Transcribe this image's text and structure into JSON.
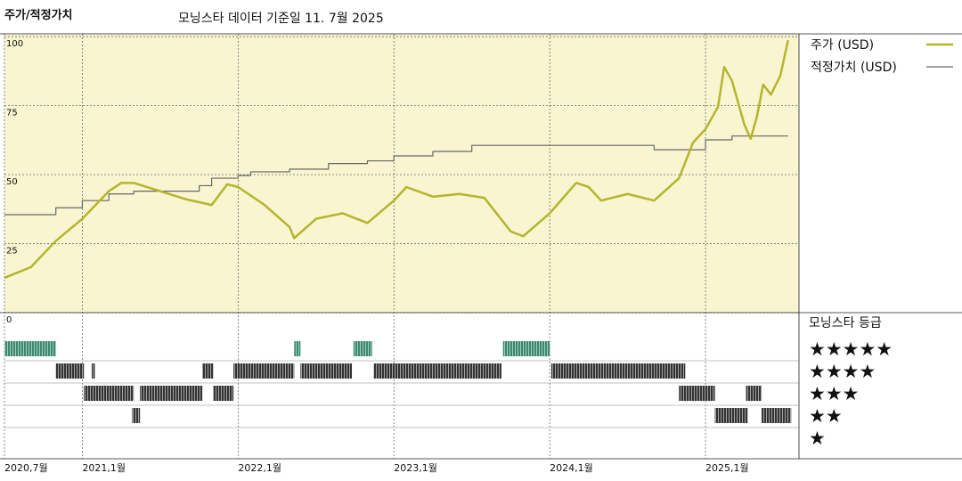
{
  "chart_data": [
    {
      "type": "line",
      "title": "주가/적정가치",
      "subtitle": "모닝스타 데이터 기준일 11. 7월 2025",
      "xlim": [
        2020.5,
        2025.6
      ],
      "xticks": [
        {
          "value": 2020.5,
          "label": "2020,7월"
        },
        {
          "value": 2021,
          "label": "2021,1월"
        },
        {
          "value": 2022,
          "label": "2022,1월"
        },
        {
          "value": 2023,
          "label": "2023,1월"
        },
        {
          "value": 2024,
          "label": "2024,1월"
        },
        {
          "value": 2025,
          "label": "2025,1월"
        }
      ],
      "ylim": [
        0,
        101
      ],
      "yticks": [
        0,
        25,
        50,
        75,
        100
      ],
      "grid": true,
      "background": "#f9f5d1",
      "series": [
        {
          "name": "주가 (USD)",
          "color": "#b4b52c",
          "width": 2.5,
          "x": [
            2020.5,
            2020.67,
            2020.83,
            2021.0,
            2021.17,
            2021.25,
            2021.33,
            2021.5,
            2021.67,
            2021.83,
            2021.93,
            2022.0,
            2022.17,
            2022.33,
            2022.36,
            2022.5,
            2022.67,
            2022.83,
            2023.0,
            2023.08,
            2023.25,
            2023.42,
            2023.58,
            2023.75,
            2023.83,
            2024.0,
            2024.17,
            2024.25,
            2024.33,
            2024.5,
            2024.67,
            2024.83,
            2024.92,
            2025.0,
            2025.08,
            2025.12,
            2025.17,
            2025.25,
            2025.29,
            2025.33,
            2025.37,
            2025.42,
            2025.48,
            2025.53
          ],
          "values": [
            12.6,
            16.5,
            26,
            34,
            44,
            47,
            47,
            44,
            41,
            39,
            46.5,
            45.5,
            39,
            31,
            27,
            34,
            36,
            32.5,
            40.6,
            45.5,
            42,
            43,
            41.6,
            29.4,
            27.7,
            36,
            47,
            45.5,
            40.6,
            43,
            40.6,
            48.7,
            61.6,
            66.5,
            74.5,
            89,
            84,
            68,
            63,
            71,
            82.6,
            79,
            85.8,
            98.7
          ]
        },
        {
          "name": "적정가치 (USD)",
          "color": "#666666",
          "width": 1.2,
          "x": [
            2020.5,
            2020.83,
            2020.83,
            2021.0,
            2021.0,
            2021.17,
            2021.17,
            2021.33,
            2021.33,
            2021.75,
            2021.75,
            2021.83,
            2021.83,
            2022.0,
            2022.0,
            2022.08,
            2022.08,
            2022.33,
            2022.33,
            2022.58,
            2022.58,
            2022.83,
            2022.83,
            2023.0,
            2023.0,
            2023.25,
            2023.25,
            2023.5,
            2023.5,
            2024.67,
            2024.67,
            2025.0,
            2025.0,
            2025.17,
            2025.17,
            2025.53
          ],
          "values": [
            35.5,
            35.5,
            38,
            38,
            40.6,
            40.6,
            43,
            43,
            44,
            44,
            46,
            46,
            48.7,
            48.7,
            49.7,
            49.7,
            51,
            51,
            52,
            52,
            54,
            54,
            55,
            55,
            56.8,
            56.8,
            58.4,
            58.4,
            60.6,
            60.6,
            59,
            59,
            62.6,
            62.6,
            64,
            64
          ]
        }
      ]
    },
    {
      "type": "rating",
      "title": "모닝스타 등급",
      "series": [
        {
          "name": "★★★★★",
          "color": "#3a8a6e",
          "periods": [
            [
              2020.5,
              2020.83
            ],
            [
              2022.36,
              2022.4
            ],
            [
              2022.74,
              2022.86
            ],
            [
              2023.7,
              2024.0
            ]
          ]
        },
        {
          "name": "★★★★",
          "color": "#333333",
          "periods": [
            [
              2020.83,
              2021.01
            ],
            [
              2021.06,
              2021.08
            ],
            [
              2021.77,
              2021.84
            ],
            [
              2021.97,
              2022.36
            ],
            [
              2022.4,
              2022.73
            ],
            [
              2022.87,
              2023.69
            ],
            [
              2024.01,
              2024.87
            ]
          ]
        },
        {
          "name": "★★★",
          "color": "#333333",
          "periods": [
            [
              2021.01,
              2021.33
            ],
            [
              2021.37,
              2021.77
            ],
            [
              2021.84,
              2021.97
            ],
            [
              2024.83,
              2025.06
            ],
            [
              2025.26,
              2025.36
            ]
          ]
        },
        {
          "name": "★★",
          "color": "#333333",
          "periods": [
            [
              2021.32,
              2021.37
            ],
            [
              2025.06,
              2025.27
            ],
            [
              2025.36,
              2025.55
            ]
          ]
        },
        {
          "name": "★",
          "color": "#333333",
          "periods": []
        }
      ]
    }
  ]
}
